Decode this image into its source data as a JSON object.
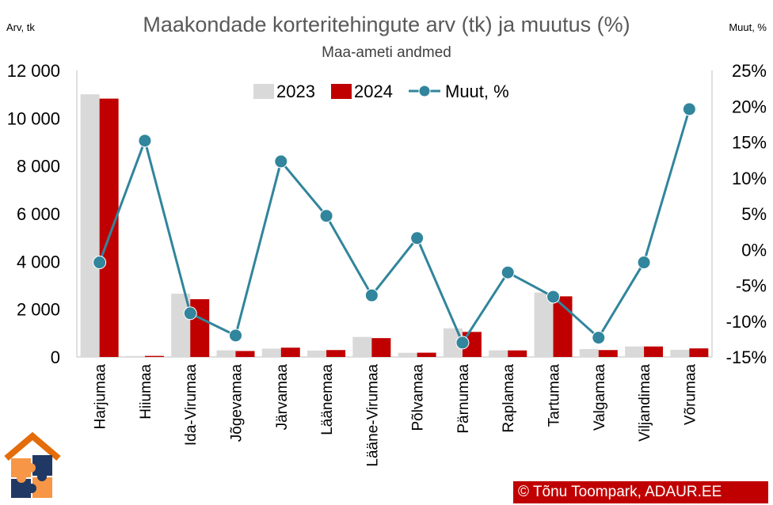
{
  "title": "Maakondade korteritehingute arv (tk) ja muutus (%)",
  "subtitle": "Maa-ameti andmed",
  "left_unit": "Arv, tk",
  "right_unit": "Muut, %",
  "copyright": "© Tõnu Toompark, ADAUR.EE",
  "colors": {
    "y2023": "#d9d9d9",
    "y2024": "#c00000",
    "change": "#31859c"
  },
  "chart_data": {
    "type": "bar",
    "categories": [
      "Harjumaa",
      "Hiiumaa",
      "Ida-Virumaa",
      "Jõgevamaa",
      "Järvamaa",
      "Läänemaa",
      "Lääne-Virumaa",
      "Põlvamaa",
      "Pärnumaa",
      "Raplamaa",
      "Tartumaa",
      "Valgamaa",
      "Viljandimaa",
      "Võrumaa"
    ],
    "series": [
      {
        "name": "2023",
        "kind": "bar",
        "axis": "left",
        "values": [
          11000,
          40,
          2650,
          280,
          350,
          270,
          840,
          175,
          1200,
          280,
          2700,
          330,
          440,
          300
        ]
      },
      {
        "name": "2024",
        "kind": "bar",
        "axis": "left",
        "values": [
          10820,
          46,
          2420,
          250,
          390,
          290,
          790,
          180,
          1050,
          275,
          2540,
          290,
          440,
          360
        ]
      },
      {
        "name": "Muut, %",
        "kind": "line",
        "axis": "right",
        "values": [
          -1.8,
          15.2,
          -8.9,
          -12.0,
          12.3,
          4.7,
          -6.4,
          1.6,
          -13.0,
          -3.2,
          -6.6,
          -12.3,
          -1.8,
          19.6
        ]
      }
    ],
    "left_axis": {
      "ylim": [
        0,
        12000
      ],
      "ticks": [
        "0",
        "2 000",
        "4 000",
        "6 000",
        "8 000",
        "10 000",
        "12 000"
      ]
    },
    "right_axis": {
      "ylim": [
        -15,
        25
      ],
      "ticks": [
        "-15%",
        "-10%",
        "-5%",
        "0%",
        "5%",
        "10%",
        "15%",
        "20%",
        "25%"
      ]
    },
    "legend": {
      "position": "top-center",
      "entries": [
        "2023",
        "2024",
        "Muut, %"
      ]
    },
    "grid": false
  }
}
